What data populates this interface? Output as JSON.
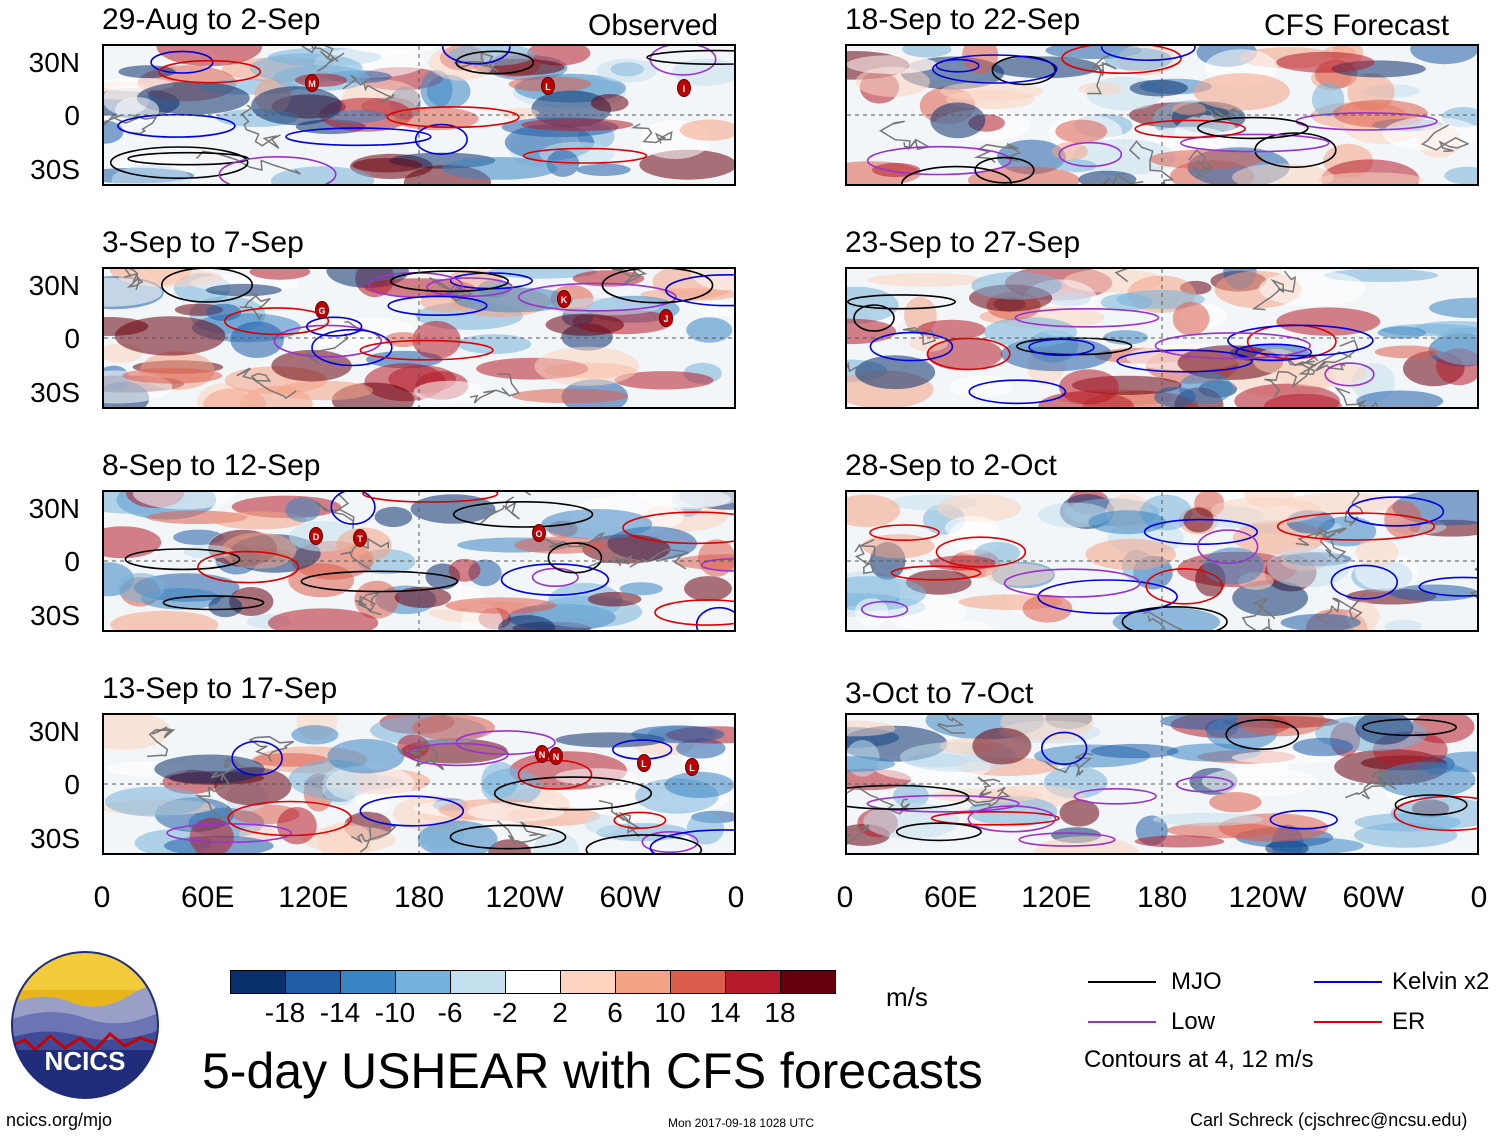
{
  "chart_data": {
    "type": "heatmap",
    "title": "5-day USHEAR with CFS forecasts",
    "variable": "USHEAR",
    "units": "m/s",
    "x_ticks": [
      "0",
      "60E",
      "120E",
      "180",
      "120W",
      "60W",
      "0"
    ],
    "y_ticks": [
      "30N",
      "0",
      "30S"
    ],
    "xlim": [
      0,
      360
    ],
    "ylim": [
      -40,
      40
    ],
    "observed_label": "Observed",
    "forecast_label": "CFS Forecast",
    "observed_panels": [
      {
        "period": "29-Aug to 2-Sep",
        "storms": [
          "M",
          "L",
          "I"
        ]
      },
      {
        "period": "3-Sep to 7-Sep",
        "storms": [
          "G",
          "K",
          "J"
        ]
      },
      {
        "period": "8-Sep to 12-Sep",
        "storms": [
          "D",
          "T",
          "O"
        ]
      },
      {
        "period": "13-Sep to 17-Sep",
        "storms": [
          "N",
          "N",
          "L",
          "L"
        ]
      }
    ],
    "forecast_panels": [
      {
        "period": "18-Sep to 22-Sep"
      },
      {
        "period": "23-Sep to 27-Sep"
      },
      {
        "period": "28-Sep to 2-Oct"
      },
      {
        "period": "3-Oct to 7-Oct"
      }
    ],
    "colorbar": {
      "labels": [
        "-18",
        "-14",
        "-10",
        "-6",
        "-2",
        "2",
        "6",
        "10",
        "14",
        "18"
      ],
      "colors": [
        "#08306b",
        "#1f5da8",
        "#3a85c3",
        "#76b2db",
        "#c4e0ef",
        "#ffffff",
        "#fcd4c0",
        "#f4a385",
        "#dc5d4c",
        "#b51b2a",
        "#67000d"
      ]
    },
    "contour_legend": [
      {
        "name": "MJO",
        "color": "#000000"
      },
      {
        "name": "Kelvin x2",
        "color": "#0000dd"
      },
      {
        "name": "Low",
        "color": "#9933cc"
      },
      {
        "name": "ER",
        "color": "#dd0000"
      }
    ],
    "contour_note": "Contours at 4, 12 m/s"
  },
  "footer": {
    "logo_text": "NCICS",
    "site": "ncics.org/mjo",
    "timestamp": "Mon 2017-09-18 1028 UTC",
    "credit": "Carl Schreck (cjschrec@ncsu.edu)"
  }
}
